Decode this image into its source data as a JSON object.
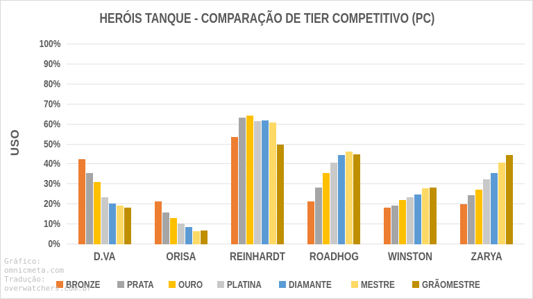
{
  "page": {
    "background": "#ffffff",
    "border_color": "#d9d9d9",
    "text_color": "#595959",
    "grid_color": "#e2e2e2"
  },
  "credits": {
    "lines": [
      "Gráfico:",
      "omnicmeta.com",
      "Tradução:",
      "overwatchers.com.br"
    ],
    "color": "#c0c0c0"
  },
  "chart_data": {
    "type": "bar",
    "title": "HERÓIS TANQUE - COMPARAÇÃO DE TIER COMPETITIVO (PC)",
    "xlabel": "",
    "ylabel": "USO",
    "ylim": [
      0,
      100
    ],
    "yticks": [
      0,
      10,
      20,
      30,
      40,
      50,
      60,
      70,
      80,
      90,
      100
    ],
    "ytick_suffix": "%",
    "grid": true,
    "legend_position": "bottom",
    "categories": [
      "D.VA",
      "ORISA",
      "REINHARDT",
      "ROADHOG",
      "WINSTON",
      "ZARYA"
    ],
    "series": [
      {
        "name": "BRONZE",
        "color": "#ED7D31",
        "values": [
          42.5,
          21.5,
          53.5,
          21.5,
          18.5,
          20.0
        ]
      },
      {
        "name": "PRATA",
        "color": "#A5A5A5",
        "values": [
          35.5,
          16.0,
          63.5,
          28.5,
          19.5,
          24.5
        ]
      },
      {
        "name": "OURO",
        "color": "#FFC000",
        "values": [
          31.0,
          13.0,
          64.5,
          35.5,
          22.0,
          27.5
        ]
      },
      {
        "name": "PLATINA",
        "color": "#C9C9C9",
        "values": [
          23.5,
          10.5,
          61.5,
          41.0,
          23.5,
          32.5
        ]
      },
      {
        "name": "DIAMANTE",
        "color": "#5B9BD5",
        "values": [
          20.5,
          8.5,
          62.0,
          44.5,
          25.0,
          35.5
        ]
      },
      {
        "name": "MESTRE",
        "color": "#FFD966",
        "values": [
          19.5,
          6.5,
          61.0,
          46.5,
          28.0,
          41.0
        ]
      },
      {
        "name": "GRÃOMESTRE",
        "color": "#BF8F00",
        "values": [
          18.5,
          7.0,
          50.0,
          45.0,
          28.5,
          44.5
        ]
      }
    ]
  }
}
